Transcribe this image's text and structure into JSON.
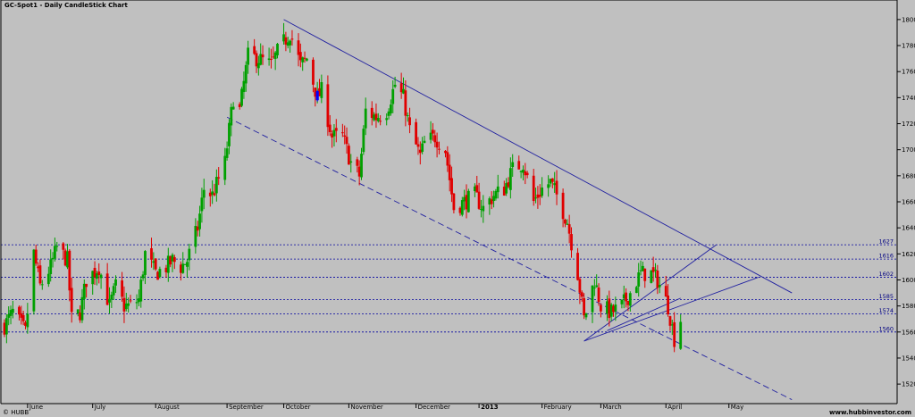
{
  "chart_data": {
    "type": "candlestick",
    "title": "GC-Spot1 - Daily CandleStick Chart",
    "xlabel": "",
    "ylabel": "",
    "ylim": [
      1505,
      1815
    ],
    "yticks": [
      1520,
      1540,
      1560,
      1580,
      1600,
      1620,
      1640,
      1660,
      1680,
      1700,
      1720,
      1740,
      1760,
      1780,
      1800
    ],
    "grid": false,
    "colors": {
      "background": "#c0c0c0",
      "up": "#00a000",
      "down": "#e00000",
      "trend": "#2020a0",
      "level": "#0000a0",
      "highlight": "#0000ff"
    },
    "months": [
      {
        "label": "June",
        "date": "2012-06-01"
      },
      {
        "label": "July",
        "date": "2012-07-02"
      },
      {
        "label": "August",
        "date": "2012-08-01"
      },
      {
        "label": "September",
        "date": "2012-09-04"
      },
      {
        "label": "October",
        "date": "2012-10-01"
      },
      {
        "label": "November",
        "date": "2012-11-01"
      },
      {
        "label": "December",
        "date": "2012-12-03"
      },
      {
        "label": "2013",
        "date": "2013-01-02",
        "bold": true
      },
      {
        "label": "February",
        "date": "2013-02-01"
      },
      {
        "label": "March",
        "date": "2013-03-01"
      },
      {
        "label": "April",
        "date": "2013-04-01"
      },
      {
        "label": "May",
        "date": "2013-05-01"
      }
    ],
    "levels": [
      {
        "label": "1627",
        "value": 1627
      },
      {
        "label": "1616",
        "value": 1616
      },
      {
        "label": "1602",
        "value": 1602
      },
      {
        "label": "1585",
        "value": 1585
      },
      {
        "label": "1574",
        "value": 1574
      },
      {
        "label": "1560",
        "value": 1560
      }
    ],
    "trendlines": [
      {
        "name": "upper-downtrend",
        "style": "solid",
        "from": [
          "2012-10-01",
          1800
        ],
        "to": [
          "2013-05-31",
          1590
        ]
      },
      {
        "name": "lower-channel",
        "style": "dashed",
        "from": [
          "2012-09-04",
          1725
        ],
        "to": [
          "2013-05-31",
          1508
        ]
      },
      {
        "name": "fan-1",
        "style": "solid",
        "from": [
          "2013-02-21",
          1553
        ],
        "to": [
          "2013-04-25",
          1627
        ]
      },
      {
        "name": "fan-2",
        "style": "solid",
        "from": [
          "2013-02-21",
          1553
        ],
        "to": [
          "2013-05-15",
          1602
        ]
      },
      {
        "name": "fan-3",
        "style": "solid",
        "from": [
          "2013-03-04",
          1561
        ],
        "to": [
          "2013-04-08",
          1586
        ]
      }
    ],
    "highlight": {
      "date": "2012-10-17",
      "open": 1745,
      "high": 1746,
      "low": 1737,
      "close": 1738
    },
    "waypoints": [
      [
        "2012-05-21",
        1565
      ],
      [
        "2012-05-25",
        1575
      ],
      [
        "2012-05-31",
        1560
      ],
      [
        "2012-06-04",
        1620
      ],
      [
        "2012-06-07",
        1595
      ],
      [
        "2012-06-12",
        1610
      ],
      [
        "2012-06-15",
        1625
      ],
      [
        "2012-06-20",
        1615
      ],
      [
        "2012-06-22",
        1570
      ],
      [
        "2012-06-26",
        1575
      ],
      [
        "2012-06-29",
        1600
      ],
      [
        "2012-07-05",
        1610
      ],
      [
        "2012-07-10",
        1580
      ],
      [
        "2012-07-13",
        1595
      ],
      [
        "2012-07-17",
        1580
      ],
      [
        "2012-07-20",
        1580
      ],
      [
        "2012-07-24",
        1585
      ],
      [
        "2012-07-27",
        1620
      ],
      [
        "2012-08-01",
        1605
      ],
      [
        "2012-08-06",
        1610
      ],
      [
        "2012-08-09",
        1615
      ],
      [
        "2012-08-13",
        1610
      ],
      [
        "2012-08-16",
        1615
      ],
      [
        "2012-08-21",
        1640
      ],
      [
        "2012-08-24",
        1670
      ],
      [
        "2012-08-28",
        1665
      ],
      [
        "2012-09-03",
        1690
      ],
      [
        "2012-09-07",
        1740
      ],
      [
        "2012-09-10",
        1730
      ],
      [
        "2012-09-14",
        1772
      ],
      [
        "2012-09-19",
        1770
      ],
      [
        "2012-09-25",
        1765
      ],
      [
        "2012-09-28",
        1775
      ],
      [
        "2012-10-04",
        1790
      ],
      [
        "2012-10-09",
        1765
      ],
      [
        "2012-10-12",
        1770
      ],
      [
        "2012-10-17",
        1740
      ],
      [
        "2012-10-19",
        1745
      ],
      [
        "2012-10-24",
        1710
      ],
      [
        "2012-10-29",
        1710
      ],
      [
        "2012-11-02",
        1690
      ],
      [
        "2012-11-06",
        1680
      ],
      [
        "2012-11-09",
        1730
      ],
      [
        "2012-11-14",
        1725
      ],
      [
        "2012-11-19",
        1730
      ],
      [
        "2012-11-23",
        1750
      ],
      [
        "2012-11-27",
        1740
      ],
      [
        "2012-11-30",
        1715
      ],
      [
        "2012-12-05",
        1695
      ],
      [
        "2012-12-07",
        1705
      ],
      [
        "2012-12-12",
        1710
      ],
      [
        "2012-12-17",
        1700
      ],
      [
        "2012-12-21",
        1655
      ],
      [
        "2012-12-26",
        1660
      ],
      [
        "2012-12-31",
        1665
      ],
      [
        "2013-01-04",
        1655
      ],
      [
        "2013-01-09",
        1665
      ],
      [
        "2013-01-14",
        1670
      ],
      [
        "2013-01-18",
        1685
      ],
      [
        "2013-01-23",
        1690
      ],
      [
        "2013-01-28",
        1660
      ],
      [
        "2013-02-01",
        1670
      ],
      [
        "2013-02-05",
        1675
      ],
      [
        "2013-02-08",
        1665
      ],
      [
        "2013-02-13",
        1645
      ],
      [
        "2013-02-18",
        1605
      ],
      [
        "2013-02-21",
        1570
      ],
      [
        "2013-02-26",
        1600
      ],
      [
        "2013-03-01",
        1580
      ],
      [
        "2013-03-06",
        1575
      ],
      [
        "2013-03-11",
        1580
      ],
      [
        "2013-03-15",
        1590
      ],
      [
        "2013-03-20",
        1605
      ],
      [
        "2013-03-25",
        1605
      ],
      [
        "2013-03-28",
        1600
      ],
      [
        "2013-04-02",
        1580
      ],
      [
        "2013-04-05",
        1555
      ],
      [
        "2013-04-08",
        1570
      ]
    ]
  },
  "footer": {
    "left": "© HUBB",
    "right": "www.hubbinvestor.com"
  }
}
